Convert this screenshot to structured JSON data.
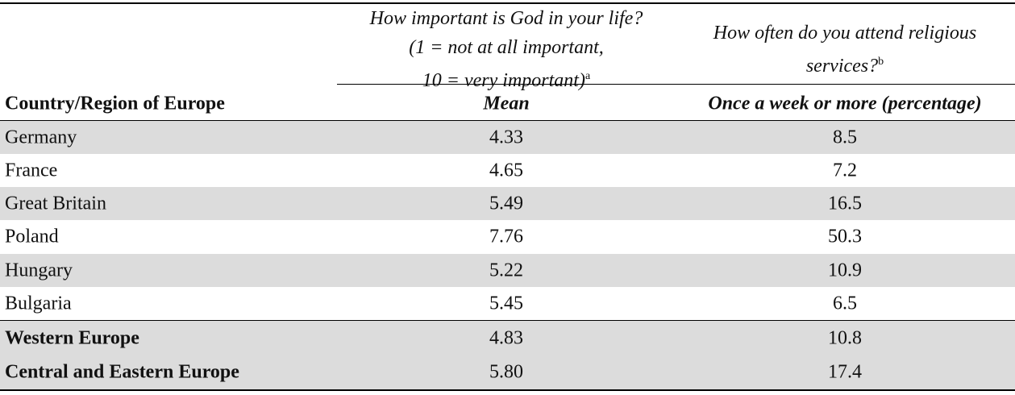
{
  "header": {
    "q1_line1": "How important is God in your life?",
    "q1_line2": "(1 = not at all important,",
    "q1_line3": "10 = very important)",
    "q1_sup": "a",
    "q2_line1": "How often do you attend religious",
    "q2_line2": "services?",
    "q2_sup": "b",
    "col1": "Country/Region of Europe",
    "col2": "Mean",
    "col3": "Once a week or more (percentage)"
  },
  "rows": [
    {
      "name": "Germany",
      "mean": "4.33",
      "pct": "8.5"
    },
    {
      "name": "France",
      "mean": "4.65",
      "pct": "7.2"
    },
    {
      "name": "Great Britain",
      "mean": "5.49",
      "pct": "16.5"
    },
    {
      "name": "Poland",
      "mean": "7.76",
      "pct": "50.3"
    },
    {
      "name": "Hungary",
      "mean": "5.22",
      "pct": "10.9"
    },
    {
      "name": "Bulgaria",
      "mean": "5.45",
      "pct": "6.5"
    }
  ],
  "summary": [
    {
      "name": "Western Europe",
      "mean": "4.83",
      "pct": "10.8"
    },
    {
      "name": "Central and Eastern Europe",
      "mean": "5.80",
      "pct": "17.4"
    }
  ]
}
